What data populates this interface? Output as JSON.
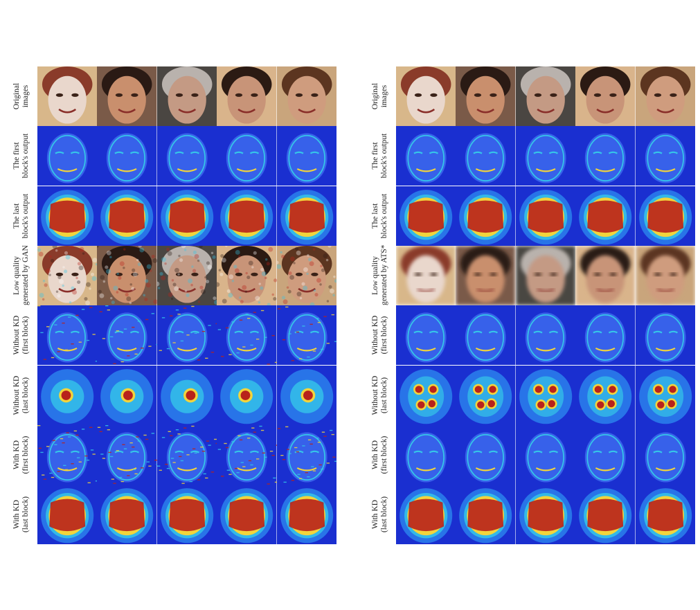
{
  "panels": [
    {
      "rows": [
        {
          "label": [
            "Original",
            "images"
          ],
          "kind": "photo"
        },
        {
          "label": [
            "The first",
            "block's output"
          ],
          "kind": "first"
        },
        {
          "label": [
            "The last",
            "block's output"
          ],
          "kind": "last"
        },
        {
          "label": [
            "Low quality",
            "generated by GAN"
          ],
          "kind": "lowgan"
        },
        {
          "label": [
            "Without KD",
            "(first block)"
          ],
          "kind": "first_noisy"
        },
        {
          "label": [
            "Without KD",
            "(last block)"
          ],
          "kind": "last_sparse"
        },
        {
          "label": [
            "With KD",
            "(first block)"
          ],
          "kind": "first_noisy2"
        },
        {
          "label": [
            "With KD",
            "(last block)"
          ],
          "kind": "last"
        }
      ]
    },
    {
      "rows": [
        {
          "label": [
            "Original",
            "images"
          ],
          "kind": "photo"
        },
        {
          "label": [
            "The first",
            "block's output"
          ],
          "kind": "first"
        },
        {
          "label": [
            "The last",
            "block's output"
          ],
          "kind": "last"
        },
        {
          "label": [
            "Low quality",
            "generated by ATS*"
          ],
          "kind": "blur"
        },
        {
          "label": [
            "Without KD",
            "(first block)"
          ],
          "kind": "first"
        },
        {
          "label": [
            "Without KD",
            "(last block)"
          ],
          "kind": "last_spots"
        },
        {
          "label": [
            "With KD",
            "(first block)"
          ],
          "kind": "first"
        },
        {
          "label": [
            "With KD",
            "(last block)"
          ],
          "kind": "last"
        }
      ]
    }
  ],
  "faces": [
    {
      "skin": "#e9d7cc",
      "hair": "#8a3b2a",
      "bg": "#d8b78a"
    },
    {
      "skin": "#c98f6d",
      "hair": "#2a1a14",
      "bg": "#7a5a48"
    },
    {
      "skin": "#c49a84",
      "hair": "#b9b2ad",
      "bg": "#4a4642"
    },
    {
      "skin": "#c89478",
      "hair": "#2b1a13",
      "bg": "#d9b48b"
    },
    {
      "skin": "#cf9c7e",
      "hair": "#5c3520",
      "bg": "#c9a57c"
    }
  ],
  "colors": {
    "heat_low": "#1a2fd0",
    "heat_mid": "#35c6e8",
    "heat_warm": "#f2d43c",
    "heat_hot": "#b8221b"
  }
}
